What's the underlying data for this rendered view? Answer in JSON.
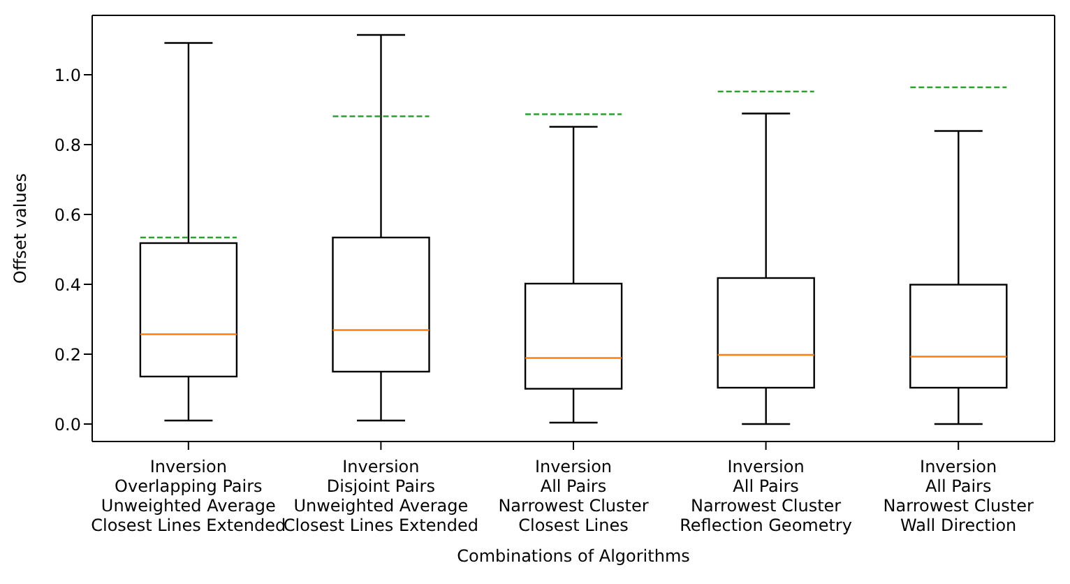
{
  "chart_data": {
    "type": "box",
    "xlabel": "Combinations of Algorithms",
    "ylabel": "Offset values",
    "categories": [
      "Inversion\nOverlapping Pairs\nUnweighted Average\nClosest Lines Extended",
      "Inversion\nDisjoint Pairs\nUnweighted Average\nClosest Lines Extended",
      "Inversion\nAll Pairs\nNarrowest Cluster\nClosest Lines",
      "Inversion\nAll Pairs\nNarrowest Cluster\nReflection Geometry",
      "Inversion\nAll Pairs\nNarrowest Cluster\nWall Direction"
    ],
    "boxes": [
      {
        "low": 0.01,
        "q1": 0.136,
        "median": 0.257,
        "q3": 0.518,
        "high": 1.091,
        "mean": 0.534
      },
      {
        "low": 0.01,
        "q1": 0.15,
        "median": 0.269,
        "q3": 0.534,
        "high": 1.114,
        "mean": 0.881
      },
      {
        "low": 0.004,
        "q1": 0.101,
        "median": 0.189,
        "q3": 0.402,
        "high": 0.851,
        "mean": 0.887
      },
      {
        "low": 0.0,
        "q1": 0.104,
        "median": 0.198,
        "q3": 0.418,
        "high": 0.889,
        "mean": 0.952
      },
      {
        "low": 0.0,
        "q1": 0.104,
        "median": 0.193,
        "q3": 0.399,
        "high": 0.839,
        "mean": 0.964
      }
    ],
    "ylim": [
      -0.05,
      1.17
    ],
    "yticks": [
      {
        "value": 0,
        "label": "0.0"
      },
      {
        "value": 0.2,
        "label": "0.2"
      },
      {
        "value": 0.4,
        "label": "0.4"
      },
      {
        "value": 0.6,
        "label": "0.6"
      },
      {
        "value": 0.8,
        "label": "0.8"
      },
      {
        "value": 1,
        "label": "1.0"
      }
    ],
    "grid": false,
    "legend": false
  }
}
